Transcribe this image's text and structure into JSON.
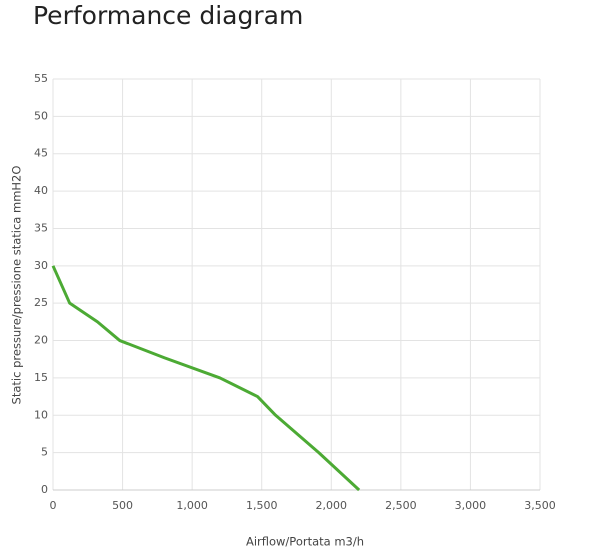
{
  "chart_data": {
    "type": "line",
    "title": "Performance diagram",
    "x_label": "Airflow/Portata m3/h",
    "y_label": "Static pressure/pressione statica mmH2O",
    "series": [
      {
        "color": "#4caa34",
        "x": [
          0,
          120,
          320,
          480,
          800,
          1200,
          1470,
          1600,
          1910,
          2200
        ],
        "values": [
          30,
          25,
          22.5,
          20,
          17.7,
          15,
          12.5,
          10,
          5,
          0
        ]
      }
    ],
    "xlim": [
      0,
      3500
    ],
    "xticks": [
      0,
      500,
      {
        "value": 1000,
        "label": "1,000"
      },
      {
        "value": 1500,
        "label": "1,500"
      },
      {
        "value": 2000,
        "label": "2,000"
      },
      {
        "value": 2500,
        "label": "2,500"
      },
      {
        "value": 3000,
        "label": "3,000"
      },
      {
        "value": 3500,
        "label": "3,500"
      }
    ],
    "ylim": [
      0,
      55
    ],
    "yticks": [
      0,
      5,
      10,
      15,
      20,
      25,
      30,
      35,
      40,
      45,
      50,
      55
    ],
    "grid": true
  }
}
